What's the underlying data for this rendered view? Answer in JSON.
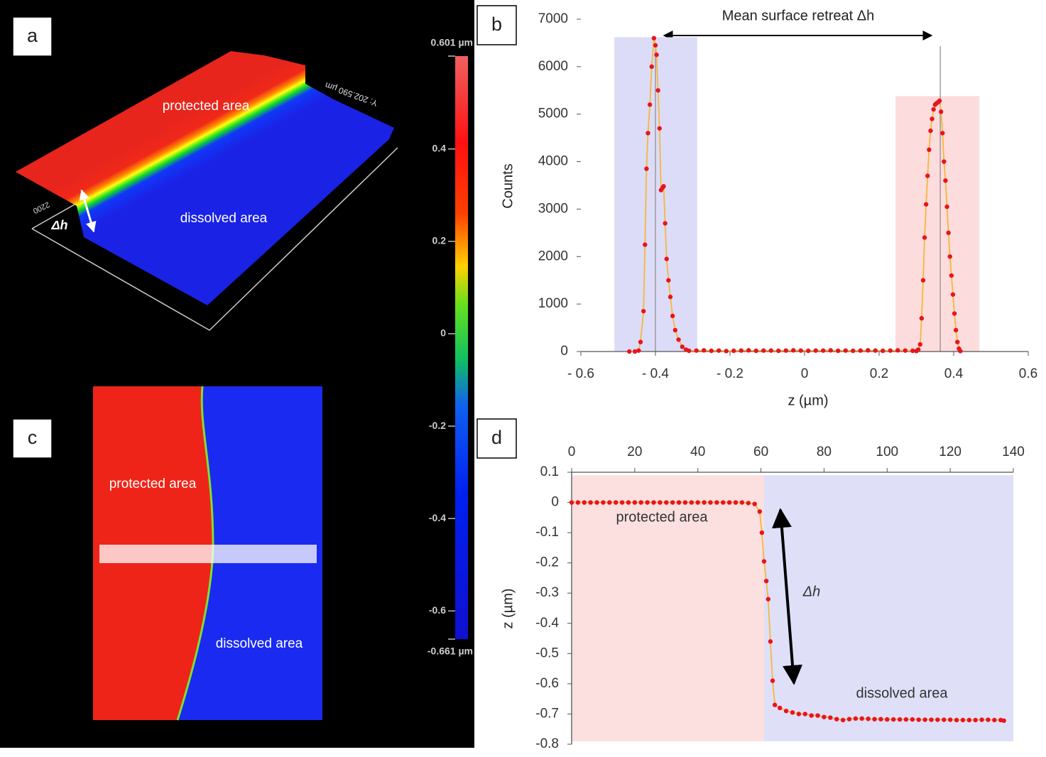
{
  "panel_a": {
    "label": "a",
    "protected": "protected area",
    "dissolved": "dissolved area",
    "step": "Δh",
    "y_length": "Y: 202.590 µm",
    "scale_mark": "2200"
  },
  "panel_c": {
    "label": "c",
    "protected": "protected area",
    "dissolved": "dissolved area"
  },
  "colorbar": {
    "lim": [
      -0.661,
      0.601
    ],
    "ticks": [
      {
        "value": 0.601,
        "label": "0.601 µm"
      },
      0.4,
      0.2,
      0,
      -0.2,
      -0.4,
      -0.6,
      {
        "value": -0.661,
        "label": "-0.661 µm"
      }
    ]
  },
  "chart_data": [
    {
      "type": "line",
      "panel_label": "b",
      "annotation": "Mean surface retreat Δh",
      "x_label": "z (µm)",
      "y_label": "Counts",
      "x": [
        -0.47,
        -0.455,
        -0.445,
        -0.44,
        -0.432,
        -0.428,
        -0.424,
        -0.42,
        -0.415,
        -0.41,
        -0.404,
        -0.4,
        -0.397,
        -0.393,
        -0.389,
        -0.385,
        -0.381,
        -0.378,
        -0.374,
        -0.37,
        -0.365,
        -0.36,
        -0.354,
        -0.347,
        -0.338,
        -0.328,
        -0.318,
        -0.31,
        -0.29,
        -0.27,
        -0.25,
        -0.23,
        -0.21,
        -0.19,
        -0.17,
        -0.15,
        -0.13,
        -0.11,
        -0.09,
        -0.07,
        -0.05,
        -0.03,
        -0.01,
        0.01,
        0.03,
        0.05,
        0.07,
        0.09,
        0.11,
        0.13,
        0.15,
        0.17,
        0.19,
        0.21,
        0.23,
        0.25,
        0.27,
        0.29,
        0.3,
        0.305,
        0.31,
        0.314,
        0.318,
        0.322,
        0.326,
        0.33,
        0.334,
        0.338,
        0.342,
        0.346,
        0.35,
        0.354,
        0.358,
        0.362,
        0.366,
        0.37,
        0.374,
        0.378,
        0.382,
        0.386,
        0.39,
        0.394,
        0.398,
        0.402,
        0.406,
        0.41,
        0.414,
        0.418
      ],
      "values": [
        0,
        0,
        20,
        200,
        850,
        2250,
        3850,
        4600,
        5200,
        6000,
        6600,
        6450,
        6250,
        5500,
        4700,
        3400,
        3450,
        3480,
        2700,
        1950,
        1500,
        1150,
        750,
        450,
        250,
        100,
        40,
        15,
        20,
        25,
        15,
        20,
        10,
        15,
        20,
        25,
        15,
        20,
        20,
        15,
        20,
        25,
        20,
        15,
        20,
        20,
        25,
        15,
        20,
        15,
        20,
        25,
        20,
        15,
        20,
        25,
        20,
        15,
        10,
        40,
        150,
        700,
        1500,
        2400,
        3100,
        3700,
        4250,
        4650,
        4900,
        5100,
        5200,
        5230,
        5250,
        5280,
        5050,
        4600,
        4000,
        3600,
        3050,
        2500,
        2000,
        1600,
        1200,
        800,
        450,
        200,
        60,
        10
      ],
      "line_color": "#f5b73b",
      "marker_color": "#e8141e",
      "bands": [
        {
          "xlim": [
            -0.51,
            -0.288
          ],
          "ylim": [
            0,
            6620
          ],
          "color": "#dcdcf8"
        },
        {
          "xlim": [
            0.244,
            0.469
          ],
          "ylim": [
            0,
            5380
          ],
          "color": "#fcdcdc"
        }
      ],
      "reference_lines": [
        -0.4,
        0.364
      ],
      "xlim": [
        -0.6,
        0.6
      ],
      "xticks": [
        {
          "value": -0.6,
          "label": "- 0.6"
        },
        {
          "value": -0.4,
          "label": "- 0.4"
        },
        {
          "value": -0.2,
          "label": "- 0.2"
        },
        0,
        0.2,
        0.4,
        0.6
      ],
      "ylim": [
        0,
        7000
      ],
      "yticks": [
        0,
        1000,
        2000,
        3000,
        4000,
        5000,
        6000,
        7000
      ],
      "x_axis_position": "bottom"
    },
    {
      "type": "line",
      "panel_label": "d",
      "y_label": "z (µm)",
      "annotations": [
        "protected area",
        "Δh",
        "dissolved area"
      ],
      "x": [
        0,
        2,
        4,
        6,
        8,
        10,
        12,
        14,
        16,
        18,
        20,
        22,
        24,
        26,
        28,
        30,
        32,
        34,
        36,
        38,
        40,
        42,
        44,
        46,
        48,
        50,
        52,
        54,
        56,
        58,
        59.6,
        60.3,
        61,
        61.7,
        62.3,
        63,
        63.7,
        64.4,
        66,
        68,
        70,
        72,
        74,
        76,
        78,
        80,
        82,
        84,
        86,
        88,
        90,
        92,
        94,
        96,
        98,
        100,
        102,
        104,
        106,
        108,
        110,
        112,
        114,
        116,
        118,
        120,
        122,
        124,
        126,
        128,
        130,
        132,
        134,
        136,
        137
      ],
      "values": [
        0,
        0,
        0,
        0,
        0,
        0,
        0,
        0,
        0,
        0,
        0,
        0,
        0,
        0,
        0,
        0,
        0,
        0,
        0,
        0,
        0,
        0,
        0,
        0,
        0,
        0,
        0,
        0,
        -0.002,
        -0.005,
        -0.03,
        -0.1,
        -0.195,
        -0.26,
        -0.32,
        -0.46,
        -0.59,
        -0.67,
        -0.68,
        -0.69,
        -0.695,
        -0.7,
        -0.7,
        -0.705,
        -0.705,
        -0.71,
        -0.712,
        -0.717,
        -0.72,
        -0.717,
        -0.715,
        -0.715,
        -0.716,
        -0.717,
        -0.717,
        -0.718,
        -0.718,
        -0.718,
        -0.718,
        -0.718,
        -0.719,
        -0.719,
        -0.719,
        -0.719,
        -0.719,
        -0.719,
        -0.72,
        -0.72,
        -0.72,
        -0.72,
        -0.719,
        -0.719,
        -0.72,
        -0.72,
        -0.722
      ],
      "line_color": "#f5b73b",
      "marker_color": "#e8141e",
      "bands": [
        {
          "xlim": [
            0,
            61
          ],
          "ylim": [
            -0.79,
            0.09
          ],
          "color": "#fcdfdf"
        },
        {
          "xlim": [
            61,
            140
          ],
          "ylim": [
            -0.79,
            0.09
          ],
          "color": "#dfdff8"
        }
      ],
      "xlim": [
        0,
        140
      ],
      "xticks": [
        0,
        20,
        40,
        60,
        80,
        100,
        120,
        140
      ],
      "ylim": [
        -0.8,
        0.1
      ],
      "yticks": [
        0.1,
        0,
        -0.1,
        -0.2,
        -0.3,
        -0.4,
        -0.5,
        -0.6,
        -0.7,
        -0.8
      ],
      "x_axis_position": "top"
    }
  ]
}
